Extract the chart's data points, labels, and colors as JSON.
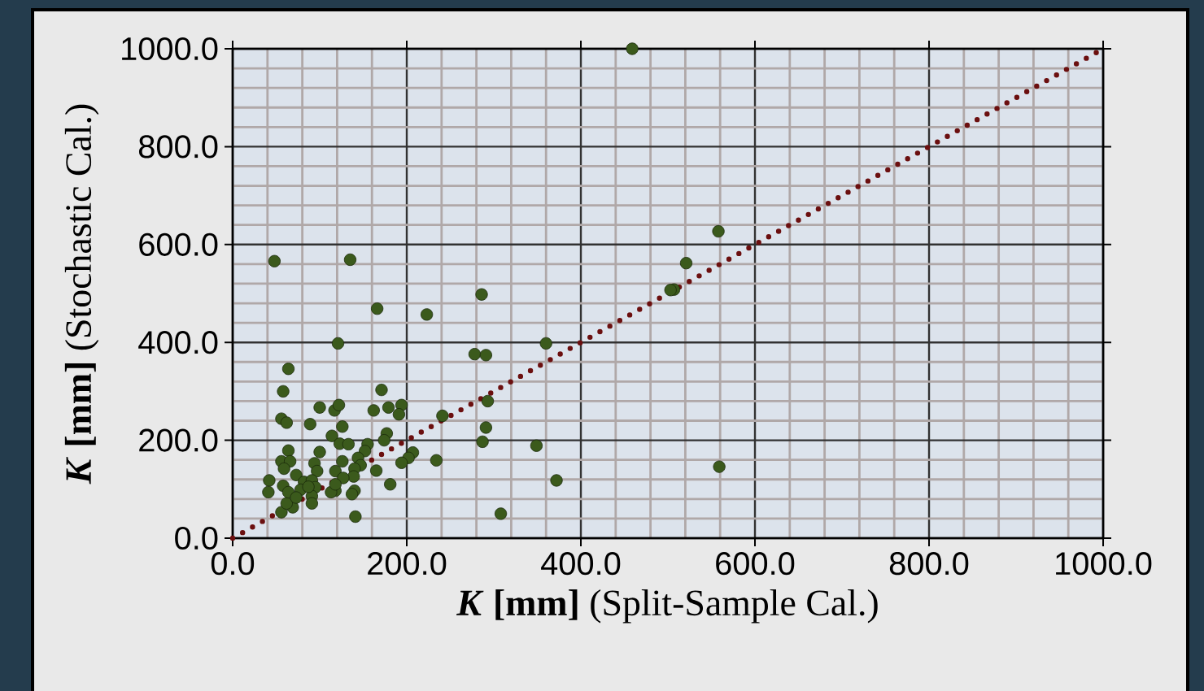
{
  "chart_data": {
    "type": "scatter",
    "xlabel": "***K* [mm]** (Split-Sample Cal.)",
    "ylabel": "***K* [mm]** (Stochastic Cal.)",
    "xlim": [
      0,
      1000
    ],
    "ylim": [
      0,
      1000
    ],
    "xticks": [
      {
        "value": 0,
        "label": "0.0"
      },
      {
        "value": 200,
        "label": "200.0"
      },
      {
        "value": 400,
        "label": "400.0"
      },
      {
        "value": 600,
        "label": "600.0"
      },
      {
        "value": 800,
        "label": "800.0"
      },
      {
        "value": 1000,
        "label": "1000.0"
      }
    ],
    "yticks": [
      {
        "value": 0,
        "label": "0.0"
      },
      {
        "value": 200,
        "label": "200.0"
      },
      {
        "value": 400,
        "label": "400.0"
      },
      {
        "value": 600,
        "label": "600.0"
      },
      {
        "value": 800,
        "label": "800.0"
      },
      {
        "value": 1000,
        "label": "1000.0"
      }
    ],
    "grid": true,
    "series": [
      {
        "color": "#3b5a1c",
        "marker": "circle",
        "x": [
          459,
          558,
          521,
          507,
          503,
          360,
          559,
          372,
          349,
          308,
          286,
          278,
          291,
          293,
          291,
          287,
          241,
          234,
          223,
          166,
          135,
          48,
          121,
          64,
          58,
          171,
          56,
          62,
          89,
          100,
          117,
          122,
          179,
          194,
          191,
          162,
          126,
          114,
          123,
          133,
          155,
          152,
          177,
          174,
          207,
          202,
          194,
          64,
          56,
          66,
          59,
          100,
          94,
          97,
          126,
          144,
          147,
          140,
          118,
          118,
          113,
          140,
          137,
          141,
          165,
          181,
          42,
          41,
          58,
          73,
          82,
          91,
          95,
          91,
          91,
          69,
          56,
          62,
          78,
          87,
          64,
          73,
          139,
          127,
          118
        ],
        "values": [
          1000,
          627,
          562,
          508,
          507,
          398,
          146,
          118,
          189,
          50,
          498,
          376,
          374,
          280,
          226,
          197,
          250,
          159,
          457,
          469,
          569,
          566,
          398,
          346,
          300,
          303,
          244,
          236,
          233,
          267,
          261,
          272,
          267,
          272,
          253,
          261,
          228,
          209,
          193,
          192,
          192,
          178,
          214,
          200,
          175,
          164,
          154,
          179,
          157,
          157,
          142,
          176,
          153,
          137,
          157,
          164,
          149,
          142,
          137,
          97,
          94,
          97,
          90,
          44,
          138,
          110,
          118,
          94,
          107,
          129,
          115,
          118,
          104,
          86,
          71,
          63,
          53,
          71,
          99,
          105,
          94,
          83,
          126,
          123,
          110
        ]
      },
      {
        "type": "line",
        "color": "#6b0f0f",
        "marker": "none",
        "line_style": "dotted",
        "x": [
          0,
          1000
        ],
        "values": [
          0,
          1000
        ]
      }
    ]
  }
}
